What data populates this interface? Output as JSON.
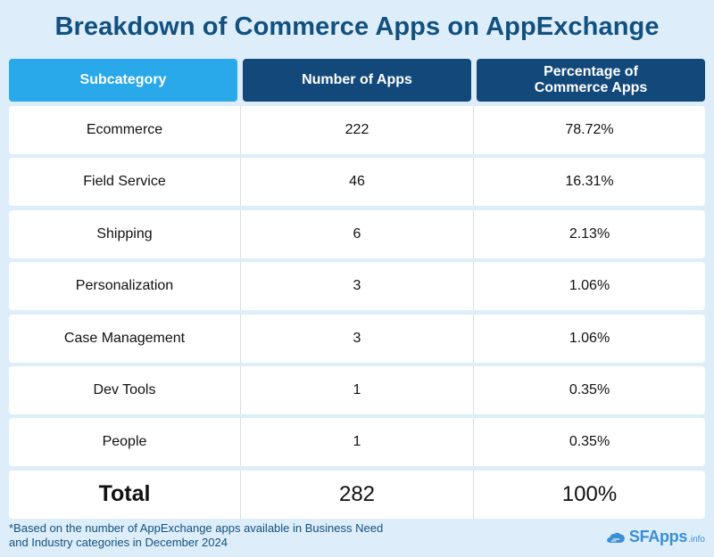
{
  "title": "Breakdown of Commerce Apps on AppExchange",
  "chart_data": {
    "type": "table",
    "title": "Breakdown of Commerce Apps on AppExchange",
    "columns": [
      "Subcategory",
      "Number of Apps",
      "Percentage of Commerce Apps"
    ],
    "rows": [
      {
        "subcategory": "Ecommerce",
        "apps": "222",
        "percent": "78.72%"
      },
      {
        "subcategory": "Field Service",
        "apps": "46",
        "percent": "16.31%"
      },
      {
        "subcategory": "Shipping",
        "apps": "6",
        "percent": "2.13%"
      },
      {
        "subcategory": "Personalization",
        "apps": "3",
        "percent": "1.06%"
      },
      {
        "subcategory": "Case Management",
        "apps": "3",
        "percent": "1.06%"
      },
      {
        "subcategory": "Dev Tools",
        "apps": "1",
        "percent": "0.35%"
      },
      {
        "subcategory": "People",
        "apps": "1",
        "percent": "0.35%"
      }
    ],
    "total": {
      "label": "Total",
      "apps": "282",
      "percent": "100%"
    }
  },
  "footnote": "*Based on the number of AppExchange apps available in Business Need and Industry categories in December 2024",
  "logo": {
    "main": "SFApps",
    "suffix": ".info",
    "icon": "cloud-icon"
  },
  "colors": {
    "accent": "#29a8ea",
    "header": "#13497a",
    "title": "#12507f",
    "background": "#ddeefa"
  }
}
